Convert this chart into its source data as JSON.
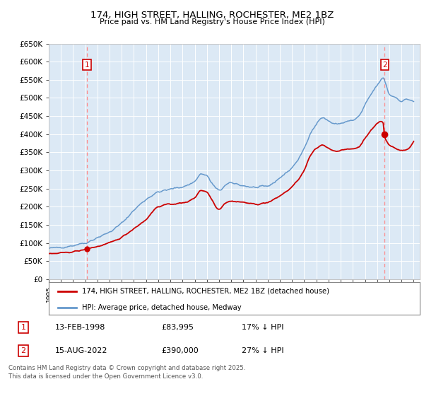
{
  "title1": "174, HIGH STREET, HALLING, ROCHESTER, ME2 1BZ",
  "title2": "Price paid vs. HM Land Registry's House Price Index (HPI)",
  "legend_label1": "174, HIGH STREET, HALLING, ROCHESTER, ME2 1BZ (detached house)",
  "legend_label2": "HPI: Average price, detached house, Medway",
  "annotation1_date": "13-FEB-1998",
  "annotation1_price": "£83,995",
  "annotation1_hpi": "17% ↓ HPI",
  "annotation2_date": "15-AUG-2022",
  "annotation2_price": "£390,000",
  "annotation2_hpi": "27% ↓ HPI",
  "footer": "Contains HM Land Registry data © Crown copyright and database right 2025.\nThis data is licensed under the Open Government Licence v3.0.",
  "price_paid_color": "#cc0000",
  "hpi_color": "#6699cc",
  "dashed_line_color": "#ff8888",
  "plot_bg_color": "#dce9f5",
  "ann_box_edge_color": "#cc0000",
  "annotation1_year": 1998.12,
  "annotation2_year": 2022.62,
  "sale1_price": 83995,
  "sale2_price": 390000,
  "ylim_max": 650000,
  "ylim_min": 0,
  "hpi_anchors_x": [
    1995.0,
    1996.0,
    1997.0,
    1997.5,
    1998.0,
    1999.0,
    2000.0,
    2001.0,
    2002.0,
    2003.0,
    2004.0,
    2005.0,
    2005.5,
    2006.0,
    2007.0,
    2007.5,
    2008.0,
    2008.4,
    2009.0,
    2009.5,
    2010.0,
    2011.0,
    2012.0,
    2013.0,
    2014.0,
    2015.0,
    2016.0,
    2016.5,
    2017.0,
    2017.5,
    2018.0,
    2018.5,
    2019.0,
    2019.5,
    2020.0,
    2020.5,
    2021.0,
    2021.5,
    2022.0,
    2022.3,
    2022.5,
    2022.7,
    2023.0,
    2023.5,
    2024.0,
    2024.5,
    2024.9
  ],
  "hpi_anchors_y": [
    85000,
    88000,
    93000,
    97000,
    100000,
    115000,
    130000,
    155000,
    190000,
    220000,
    240000,
    248000,
    252000,
    255000,
    270000,
    290000,
    285000,
    265000,
    245000,
    258000,
    265000,
    258000,
    253000,
    257000,
    280000,
    308000,
    360000,
    400000,
    430000,
    445000,
    437000,
    428000,
    430000,
    435000,
    438000,
    450000,
    480000,
    510000,
    535000,
    548000,
    555000,
    540000,
    510000,
    502000,
    492000,
    496000,
    492000
  ],
  "red_anchors_x": [
    1995.0,
    1996.0,
    1997.0,
    1998.0,
    1998.12,
    1999.0,
    2000.0,
    2001.0,
    2002.0,
    2003.0,
    2004.0,
    2005.0,
    2006.0,
    2007.0,
    2007.5,
    2008.0,
    2008.4,
    2009.0,
    2009.5,
    2010.0,
    2011.0,
    2012.0,
    2013.0,
    2014.0,
    2015.0,
    2016.0,
    2016.5,
    2017.0,
    2017.5,
    2018.0,
    2018.5,
    2019.0,
    2019.5,
    2020.0,
    2020.5,
    2021.0,
    2021.5,
    2022.0,
    2022.3,
    2022.5,
    2022.62,
    2022.7,
    2023.0,
    2023.5,
    2024.0,
    2024.5,
    2024.9
  ],
  "red_anchors_y": [
    70000,
    72000,
    76000,
    82000,
    83995,
    90000,
    100000,
    116000,
    140000,
    165000,
    200000,
    207000,
    210000,
    225000,
    245000,
    240000,
    220000,
    193000,
    210000,
    215000,
    212000,
    207000,
    212000,
    230000,
    255000,
    300000,
    340000,
    360000,
    370000,
    362000,
    354000,
    355000,
    358000,
    360000,
    365000,
    390000,
    410000,
    430000,
    435000,
    430000,
    390000,
    385000,
    370000,
    362000,
    355000,
    358000,
    375000
  ]
}
